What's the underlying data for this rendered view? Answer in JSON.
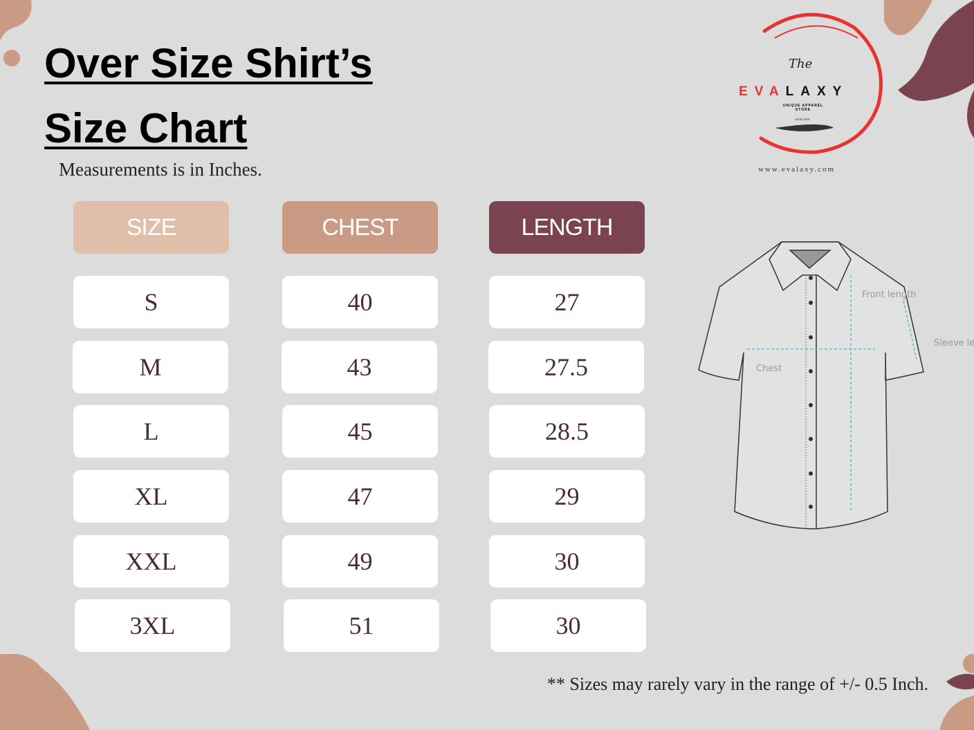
{
  "title_line1": "Over Size Shirt’s",
  "title_line2": "Size Chart",
  "subtitle": "Measurements is in Inches.",
  "headers": {
    "size": "SIZE",
    "chest": "CHEST",
    "length": "LENGTH"
  },
  "header_colors": {
    "size": "#dfbfa9",
    "chest": "#c99a84",
    "length": "#7b4350"
  },
  "rows": [
    {
      "size": "S",
      "chest": "40",
      "length": "27"
    },
    {
      "size": "M",
      "chest": "43",
      "length": "27.5"
    },
    {
      "size": "L",
      "chest": "45",
      "length": "28.5"
    },
    {
      "size": "XL",
      "chest": "47",
      "length": "29"
    },
    {
      "size": "XXL",
      "chest": "49",
      "length": "30"
    },
    {
      "size": "3XL",
      "chest": "51",
      "length": "30"
    }
  ],
  "logo": {
    "the": "The",
    "brand_red": "EVA",
    "brand_black": "LAXY",
    "tagline": "UNIQUE APPAREL STORE",
    "estd": "ESTD 2019",
    "website": "www.evalaxy.com"
  },
  "diagram_labels": {
    "chest": "Chest",
    "front_length": "Front length",
    "sleeve_length": "Sleeve length"
  },
  "note": "** Sizes may rarely vary in the range of +/- 0.5 Inch."
}
